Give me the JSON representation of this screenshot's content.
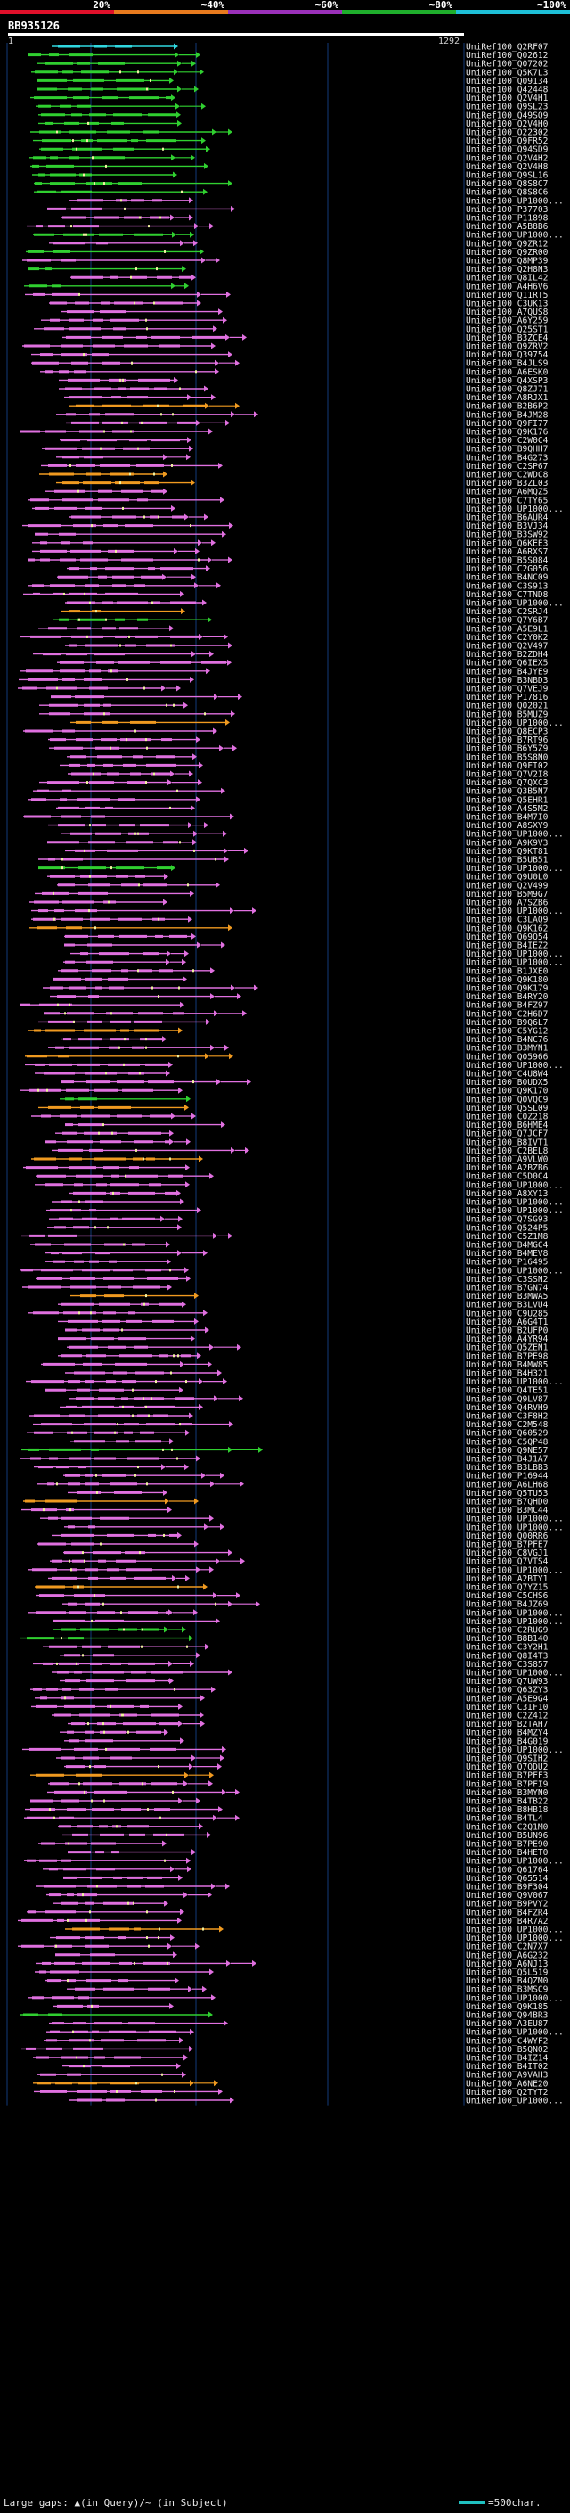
{
  "chart_data": {
    "type": "alignment",
    "identity_scale": {
      "labels": [
        "20%",
        "~40%",
        "~60%",
        "~80%",
        "~100%"
      ],
      "colors": [
        "#e0102a",
        "#e87a1e",
        "#9a30b8",
        "#1fae2c",
        "#1ec0d8"
      ]
    },
    "query": {
      "accession": "BB935126",
      "start": 1,
      "end": 1292
    },
    "colors": {
      "background": "#000000",
      "grid": "#123a7a",
      "pink": "#e070e0",
      "green": "#30d030",
      "orange": "#f09a20",
      "cyan": "#30d8e0",
      "gap": "#f0f0a0"
    },
    "hits": [
      "UniRef100_Q2RF07",
      "UniRef100_Q02612",
      "UniRef100_Q07202",
      "UniRef100_Q5K7L3",
      "UniRef100_Q09134",
      "UniRef100_Q42448",
      "UniRef100_Q2V4H1",
      "UniRef100_Q9SL23",
      "UniRef100_Q49SQ9",
      "UniRef100_Q2V4H0",
      "UniRef100_O22302",
      "UniRef100_Q9FR52",
      "UniRef100_Q94SD9",
      "UniRef100_Q2V4H2",
      "UniRef100_Q2V4H8",
      "UniRef100_Q9SL16",
      "UniRef100_Q8S8C7",
      "UniRef100_Q8S8C6",
      "UniRef100_UP1000...",
      "UniRef100_P37703",
      "UniRef100_P11898",
      "UniRef100_A5B8B6",
      "UniRef100_UP1000...",
      "UniRef100_Q9ZR12",
      "UniRef100_Q9ZR00",
      "UniRef100_Q8MP39",
      "UniRef100_Q2H8N3",
      "UniRef100_Q8IL42",
      "UniRef100_A4H6V6",
      "UniRef100_Q11RT5",
      "UniRef100_C3UK13",
      "UniRef100_A7QUS8",
      "UniRef100_A6Y259",
      "UniRef100_Q25ST1",
      "UniRef100_B3ZCE4",
      "UniRef100_Q9ZRV2",
      "UniRef100_Q39754",
      "UniRef100_B4JLS9",
      "UniRef100_A6ESK0",
      "UniRef100_Q4XSP3",
      "UniRef100_Q8ZJ71",
      "UniRef100_A8RJX1",
      "UniRef100_B2B6P2",
      "UniRef100_B4JM28",
      "UniRef100_Q9FI77",
      "UniRef100_Q9K176",
      "UniRef100_C2W0C4",
      "UniRef100_B9QHH7",
      "UniRef100_B4G273",
      "UniRef100_C2SP67",
      "UniRef100_C2WDC8",
      "UniRef100_B3ZL03",
      "UniRef100_A6MQZ5",
      "UniRef100_C7TY65",
      "UniRef100_UP1000...",
      "UniRef100_B6AUR4",
      "UniRef100_B3VJ34",
      "UniRef100_B3SW92",
      "UniRef100_Q6KEE3",
      "UniRef100_A6RXS7",
      "UniRef100_B5S084",
      "UniRef100_C2G056",
      "UniRef100_B4NC09",
      "UniRef100_C3S913",
      "UniRef100_C7TND8",
      "UniRef100_UP1000...",
      "UniRef100_C2SRJ4",
      "UniRef100_Q7Y6B7",
      "UniRef100_A5E9L1",
      "UniRef100_C2Y0K2",
      "UniRef100_Q2V497",
      "UniRef100_B2ZDH4",
      "UniRef100_Q6IEX5",
      "UniRef100_B4JYE9",
      "UniRef100_B3NBD3",
      "UniRef100_Q7VEJ9",
      "UniRef100_P17816",
      "UniRef100_Q02021",
      "UniRef100_B5MUZ9",
      "UniRef100_UP1000...",
      "UniRef100_Q8ECP3",
      "UniRef100_B7RT96",
      "UniRef100_B6Y5Z9",
      "UniRef100_B5S8N0",
      "UniRef100_Q9FI02",
      "UniRef100_Q7V2I8",
      "UniRef100_Q7QXC3",
      "UniRef100_Q3B5N7",
      "UniRef100_Q5EHR1",
      "UniRef100_A4S5M2",
      "UniRef100_B4M7I0",
      "UniRef100_A8SXY9",
      "UniRef100_UP1000...",
      "UniRef100_A9K9V3",
      "UniRef100_Q9KT81",
      "UniRef100_B5UB51",
      "UniRef100_UP1000...",
      "UniRef100_Q9U0L0",
      "UniRef100_Q2V499",
      "UniRef100_B5M9G7",
      "UniRef100_A7SZB6",
      "UniRef100_UP1000...",
      "UniRef100_C3LAQ9",
      "UniRef100_Q9K162",
      "UniRef100_Q69Q54",
      "UniRef100_B4IEZ2",
      "UniRef100_UP1000...",
      "UniRef100_UP1000...",
      "UniRef100_B1JXE0",
      "UniRef100_Q9K180",
      "UniRef100_Q9K179",
      "UniRef100_B4RY20",
      "UniRef100_B4FZ97",
      "UniRef100_C2H6D7",
      "UniRef100_B9Q6L7",
      "UniRef100_C5YG12",
      "UniRef100_B4NC76",
      "UniRef100_B3MYN1",
      "UniRef100_Q05966",
      "UniRef100_UP1000...",
      "UniRef100_C4U8W4",
      "UniRef100_B0UDX5",
      "UniRef100_Q9K170",
      "UniRef100_Q0VQC9",
      "UniRef100_Q5SL09",
      "UniRef100_C0Z218",
      "UniRef100_B6HME4",
      "UniRef100_Q7JCF7",
      "UniRef100_B8IVT1",
      "UniRef100_C2BEL8",
      "UniRef100_A9VLW0",
      "UniRef100_A2BZB6",
      "UniRef100_C5D0C4",
      "UniRef100_UP1000...",
      "UniRef100_A8XY13",
      "UniRef100_UP1000...",
      "UniRef100_UP1000...",
      "UniRef100_Q7SG93",
      "UniRef100_Q524P5",
      "UniRef100_C5Z1M8",
      "UniRef100_B4MGC4",
      "UniRef100_B4MEV8",
      "UniRef100_P16495",
      "UniRef100_UP1000...",
      "UniRef100_C3SSN2",
      "UniRef100_B7GN74",
      "UniRef100_B3MWA5",
      "UniRef100_B3LVU4",
      "UniRef100_C9U285",
      "UniRef100_A6G4T1",
      "UniRef100_B2UFP0",
      "UniRef100_A4YR94",
      "UniRef100_Q5ZEN1",
      "UniRef100_B7PE98",
      "UniRef100_B4MW85",
      "UniRef100_B4H321",
      "UniRef100_UP1000...",
      "UniRef100_Q4TE51",
      "UniRef100_Q9LV87",
      "UniRef100_Q4RVH9",
      "UniRef100_C3F8H2",
      "UniRef100_C2M548",
      "UniRef100_Q60529",
      "UniRef100_C5QP48",
      "UniRef100_Q9NE57",
      "UniRef100_B4J1A7",
      "UniRef100_B3LBB3",
      "UniRef100_P16944",
      "UniRef100_A6LH68",
      "UniRef100_Q5TU53",
      "UniRef100_B7QHD0",
      "UniRef100_B3MC44",
      "UniRef100_UP1000...",
      "UniRef100_UP1000...",
      "UniRef100_Q00RR6",
      "UniRef100_B7PFE7",
      "UniRef100_C8VGJ1",
      "UniRef100_Q7VTS4",
      "UniRef100_UP1000...",
      "UniRef100_A2BTY1",
      "UniRef100_Q7YZ15",
      "UniRef100_C5CHS6",
      "UniRef100_B4JZ69",
      "UniRef100_UP1000...",
      "UniRef100_UP1000...",
      "UniRef100_C2RUG9",
      "UniRef100_B8B140",
      "UniRef100_C3Y2H1",
      "UniRef100_Q8I4T3",
      "UniRef100_C3S857",
      "UniRef100_UP1000...",
      "UniRef100_Q7UW93",
      "UniRef100_Q63ZY3",
      "UniRef100_A5E9G4",
      "UniRef100_C3IF10",
      "UniRef100_C2Z412",
      "UniRef100_B2TAH7",
      "UniRef100_B4MZY4",
      "UniRef100_B4G019",
      "UniRef100_UP1000...",
      "UniRef100_Q9SIH2",
      "UniRef100_Q7QDU2",
      "UniRef100_B7PFF3",
      "UniRef100_B7PFI9",
      "UniRef100_B3MYN0",
      "UniRef100_B4TB22",
      "UniRef100_B8HB18",
      "UniRef100_B4TL4",
      "UniRef100_C2Q1M0",
      "UniRef100_B5UN96",
      "UniRef100_B7PE90",
      "UniRef100_B4HET0",
      "UniRef100_UP1000...",
      "UniRef100_Q61764",
      "UniRef100_Q65514",
      "UniRef100_B9F304",
      "UniRef100_Q9V067",
      "UniRef100_B9PVY2",
      "UniRef100_B4FZR4",
      "UniRef100_B4R7A2",
      "UniRef100_UP1000...",
      "UniRef100_UP1000...",
      "UniRef100_C2N7X7",
      "UniRef100_A6G232",
      "UniRef100_A6NJ13",
      "UniRef100_Q5L519",
      "UniRef100_B4QZM0",
      "UniRef100_B3MSC9",
      "UniRef100_UP1000...",
      "UniRef100_Q9K185",
      "UniRef100_Q94BR3",
      "UniRef100_A3EU87",
      "UniRef100_UP1000...",
      "UniRef100_C4WYF2",
      "UniRef100_B5QN02",
      "UniRef100_B4IZ14",
      "UniRef100_B4IT02",
      "UniRef100_A9VAH3",
      "UniRef100_A6NE20",
      "UniRef100_Q2TYT2",
      "UniRef100_UP1000..."
    ],
    "legend": {
      "text": "Large gaps: ▲(in Query)/~ (in Subject)",
      "scale_text": "=500char."
    }
  }
}
